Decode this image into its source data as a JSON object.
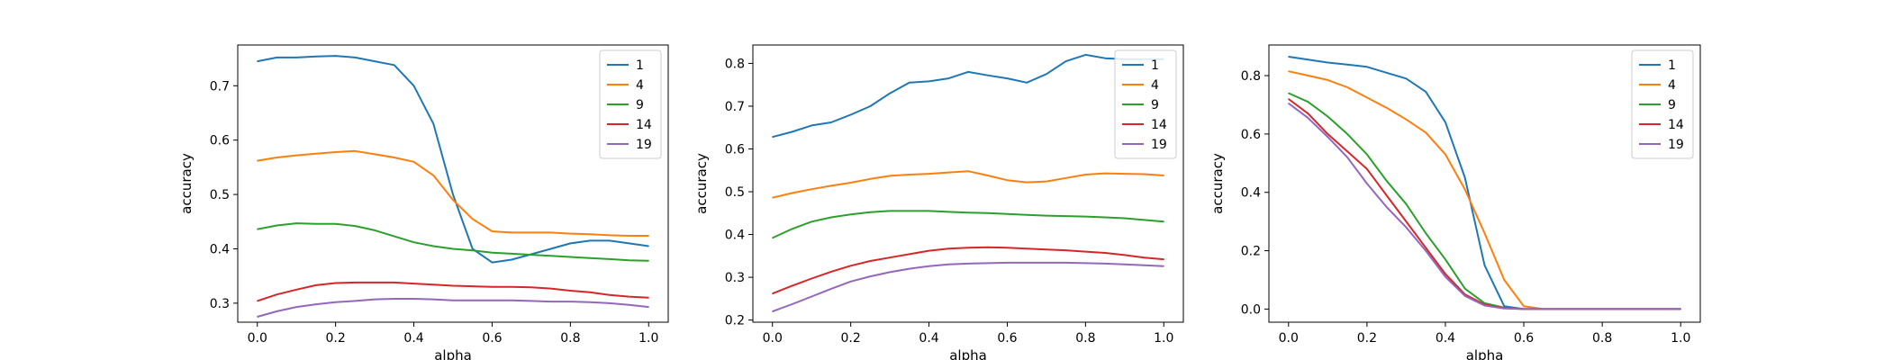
{
  "chart_data": [
    {
      "type": "line",
      "xlabel": "alpha",
      "ylabel": "accuracy",
      "xlim": [
        -0.05,
        1.05
      ],
      "ylim": [
        0.265,
        0.775
      ],
      "xticks": [
        "0.0",
        "0.2",
        "0.4",
        "0.6",
        "0.8",
        "1.0"
      ],
      "yticks": [
        "0.3",
        "0.4",
        "0.5",
        "0.6",
        "0.7"
      ],
      "legend_position": "top-right",
      "x": [
        0.0,
        0.05,
        0.1,
        0.15,
        0.2,
        0.25,
        0.3,
        0.35,
        0.4,
        0.45,
        0.5,
        0.55,
        0.6,
        0.65,
        0.7,
        0.75,
        0.8,
        0.85,
        0.9,
        0.95,
        1.0
      ],
      "series": [
        {
          "name": "1",
          "values": [
            0.745,
            0.752,
            0.752,
            0.754,
            0.755,
            0.752,
            0.745,
            0.738,
            0.7,
            0.63,
            0.5,
            0.4,
            0.375,
            0.38,
            0.39,
            0.4,
            0.41,
            0.415,
            0.415,
            0.41,
            0.405
          ]
        },
        {
          "name": "4",
          "values": [
            0.562,
            0.568,
            0.572,
            0.575,
            0.578,
            0.58,
            0.574,
            0.568,
            0.56,
            0.535,
            0.49,
            0.455,
            0.432,
            0.43,
            0.43,
            0.43,
            0.428,
            0.427,
            0.425,
            0.424,
            0.424
          ]
        },
        {
          "name": "9",
          "values": [
            0.436,
            0.443,
            0.447,
            0.446,
            0.446,
            0.442,
            0.434,
            0.423,
            0.412,
            0.405,
            0.4,
            0.397,
            0.393,
            0.391,
            0.389,
            0.387,
            0.385,
            0.383,
            0.381,
            0.379,
            0.378
          ]
        },
        {
          "name": "14",
          "values": [
            0.304,
            0.316,
            0.325,
            0.333,
            0.337,
            0.338,
            0.338,
            0.338,
            0.336,
            0.334,
            0.332,
            0.331,
            0.33,
            0.33,
            0.329,
            0.327,
            0.323,
            0.32,
            0.315,
            0.312,
            0.31
          ]
        },
        {
          "name": "19",
          "values": [
            0.275,
            0.285,
            0.293,
            0.298,
            0.302,
            0.304,
            0.307,
            0.308,
            0.308,
            0.307,
            0.305,
            0.305,
            0.305,
            0.305,
            0.304,
            0.303,
            0.303,
            0.302,
            0.3,
            0.297,
            0.293
          ]
        }
      ]
    },
    {
      "type": "line",
      "xlabel": "alpha",
      "ylabel": "accuracy",
      "xlim": [
        -0.05,
        1.05
      ],
      "ylim": [
        0.195,
        0.843
      ],
      "xticks": [
        "0.0",
        "0.2",
        "0.4",
        "0.6",
        "0.8",
        "1.0"
      ],
      "yticks": [
        "0.2",
        "0.3",
        "0.4",
        "0.5",
        "0.6",
        "0.7",
        "0.8"
      ],
      "legend_position": "top-right",
      "x": [
        0.0,
        0.05,
        0.1,
        0.15,
        0.2,
        0.25,
        0.3,
        0.35,
        0.4,
        0.45,
        0.5,
        0.55,
        0.6,
        0.65,
        0.7,
        0.75,
        0.8,
        0.85,
        0.9,
        0.95,
        1.0
      ],
      "series": [
        {
          "name": "1",
          "values": [
            0.628,
            0.64,
            0.655,
            0.662,
            0.68,
            0.7,
            0.73,
            0.755,
            0.758,
            0.765,
            0.78,
            0.772,
            0.765,
            0.755,
            0.775,
            0.805,
            0.82,
            0.812,
            0.81,
            0.81,
            0.81
          ]
        },
        {
          "name": "4",
          "values": [
            0.486,
            0.497,
            0.506,
            0.514,
            0.521,
            0.53,
            0.537,
            0.54,
            0.542,
            0.545,
            0.548,
            0.538,
            0.527,
            0.522,
            0.524,
            0.532,
            0.54,
            0.543,
            0.542,
            0.541,
            0.538
          ]
        },
        {
          "name": "9",
          "values": [
            0.392,
            0.413,
            0.43,
            0.44,
            0.447,
            0.452,
            0.455,
            0.455,
            0.455,
            0.453,
            0.451,
            0.45,
            0.448,
            0.446,
            0.444,
            0.443,
            0.442,
            0.44,
            0.438,
            0.434,
            0.43
          ]
        },
        {
          "name": "14",
          "values": [
            0.262,
            0.28,
            0.297,
            0.313,
            0.327,
            0.338,
            0.346,
            0.354,
            0.362,
            0.367,
            0.369,
            0.37,
            0.369,
            0.367,
            0.365,
            0.363,
            0.36,
            0.357,
            0.352,
            0.346,
            0.342
          ]
        },
        {
          "name": "19",
          "values": [
            0.22,
            0.237,
            0.255,
            0.273,
            0.29,
            0.302,
            0.312,
            0.32,
            0.326,
            0.33,
            0.332,
            0.333,
            0.334,
            0.334,
            0.334,
            0.334,
            0.333,
            0.332,
            0.33,
            0.328,
            0.326
          ]
        }
      ]
    },
    {
      "type": "line",
      "xlabel": "alpha",
      "ylabel": "accuracy",
      "xlim": [
        -0.05,
        1.05
      ],
      "ylim": [
        -0.045,
        0.905
      ],
      "xticks": [
        "0.0",
        "0.2",
        "0.4",
        "0.6",
        "0.8",
        "1.0"
      ],
      "yticks": [
        "0.0",
        "0.2",
        "0.4",
        "0.6",
        "0.8"
      ],
      "legend_position": "top-right",
      "x": [
        0.0,
        0.05,
        0.1,
        0.15,
        0.2,
        0.25,
        0.3,
        0.35,
        0.4,
        0.45,
        0.5,
        0.55,
        0.6,
        0.65,
        0.7,
        0.75,
        0.8,
        0.85,
        0.9,
        0.95,
        1.0
      ],
      "series": [
        {
          "name": "1",
          "values": [
            0.865,
            0.855,
            0.845,
            0.838,
            0.83,
            0.81,
            0.79,
            0.745,
            0.64,
            0.45,
            0.15,
            0.01,
            0.0,
            0.0,
            0.0,
            0.0,
            0.0,
            0.0,
            0.0,
            0.0,
            0.0
          ]
        },
        {
          "name": "4",
          "values": [
            0.815,
            0.8,
            0.785,
            0.76,
            0.725,
            0.69,
            0.65,
            0.605,
            0.53,
            0.41,
            0.26,
            0.1,
            0.01,
            0.0,
            0.0,
            0.0,
            0.0,
            0.0,
            0.0,
            0.0,
            0.0
          ]
        },
        {
          "name": "9",
          "values": [
            0.74,
            0.71,
            0.66,
            0.6,
            0.53,
            0.44,
            0.36,
            0.26,
            0.17,
            0.07,
            0.02,
            0.005,
            0.0,
            0.0,
            0.0,
            0.0,
            0.0,
            0.0,
            0.0,
            0.0,
            0.0
          ]
        },
        {
          "name": "14",
          "values": [
            0.72,
            0.67,
            0.6,
            0.54,
            0.48,
            0.39,
            0.3,
            0.21,
            0.12,
            0.05,
            0.015,
            0.003,
            0.0,
            0.0,
            0.0,
            0.0,
            0.0,
            0.0,
            0.0,
            0.0,
            0.0
          ]
        },
        {
          "name": "19",
          "values": [
            0.705,
            0.655,
            0.59,
            0.52,
            0.43,
            0.35,
            0.28,
            0.2,
            0.11,
            0.045,
            0.012,
            0.002,
            0.0,
            0.0,
            0.0,
            0.0,
            0.0,
            0.0,
            0.0,
            0.0,
            0.0
          ]
        }
      ]
    }
  ],
  "colors": {
    "1": "#1f77b4",
    "4": "#ff7f0e",
    "9": "#2ca02c",
    "14": "#d62728",
    "19": "#9467bd"
  }
}
